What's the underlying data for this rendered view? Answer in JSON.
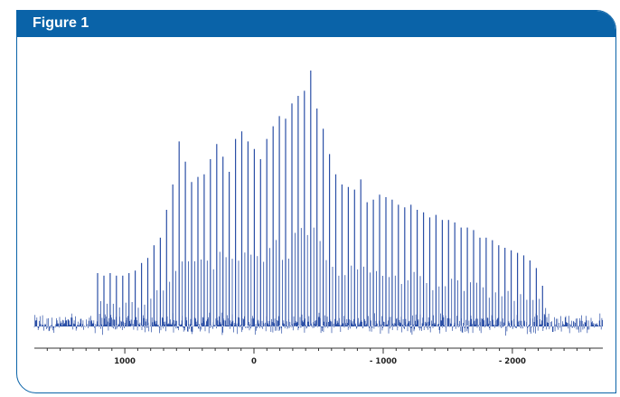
{
  "figure": {
    "title": "Figure 1"
  },
  "colors": {
    "frame": "#0a63a8",
    "trace": "#2b4fa6",
    "axis": "#333333"
  },
  "chart_data": {
    "type": "line",
    "title": "",
    "xlabel": "",
    "ylabel": "",
    "x_axis_reversed": true,
    "xlim": [
      1700,
      -2700
    ],
    "ylim": [
      0,
      100
    ],
    "grid": false,
    "xticks": [
      1000,
      0,
      -1000,
      -2000
    ],
    "xtick_labels": [
      "1000",
      "0",
      "- 1000",
      "- 2000"
    ],
    "baseline_noise_level": 3,
    "peak_spacing": 48.5,
    "peaks": {
      "x": [
        1210,
        1161.5,
        1113,
        1064.5,
        1016,
        967.5,
        919,
        870.5,
        822,
        773.5,
        725,
        676.5,
        628,
        579.5,
        531,
        482.5,
        434,
        385.5,
        337,
        288.5,
        240,
        191.5,
        143,
        94.5,
        46,
        -2.5,
        -51,
        -99.5,
        -148,
        -196.5,
        -245,
        -293.5,
        -342,
        -390.5,
        -439,
        -487.5,
        -536,
        -584.5,
        -633,
        -681.5,
        -730,
        -778.5,
        -827,
        -875.5,
        -924,
        -972.5,
        -1021,
        -1069.5,
        -1118,
        -1166.5,
        -1215,
        -1263.5,
        -1312,
        -1360.5,
        -1409,
        -1457.5,
        -1506,
        -1554.5,
        -1603,
        -1651.5,
        -1700,
        -1748.5,
        -1797,
        -1845.5,
        -1894,
        -1942.5,
        -1991,
        -2039.5,
        -2088,
        -2136.5,
        -2185,
        -2233.5
      ],
      "y": [
        20,
        19,
        20,
        19,
        19,
        20,
        21,
        24,
        26,
        31,
        34,
        45,
        55,
        72,
        64,
        56,
        58,
        59,
        65,
        71,
        66,
        60,
        73,
        76,
        72,
        69,
        65,
        73,
        78,
        82,
        81,
        87,
        90,
        92,
        100,
        85,
        77,
        67,
        59,
        55,
        54,
        53,
        57,
        48,
        49,
        51,
        50,
        49,
        47,
        46,
        47,
        45,
        44,
        42,
        43,
        41,
        41,
        40,
        38,
        38,
        37,
        34,
        34,
        33,
        31,
        30,
        29,
        28,
        27,
        25,
        22,
        15
      ]
    }
  }
}
